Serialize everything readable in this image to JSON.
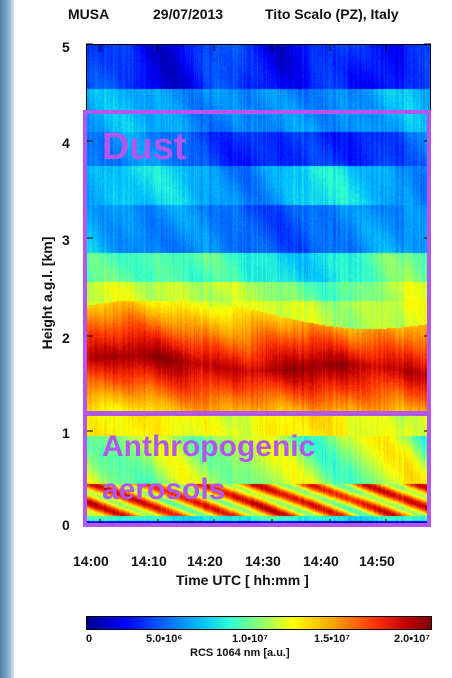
{
  "title": {
    "instrument": "MUSA",
    "date": "29/07/2013",
    "site": "Tito Scalo (PZ), Italy"
  },
  "chart_data": {
    "type": "heatmap",
    "title": "MUSA   29/07/2013   Tito Scalo (PZ), Italy",
    "xlabel": "Time UTC [ hh:mm ]",
    "ylabel": "Height a.g.l. [km]",
    "x_ticks": [
      "14:00",
      "14:10",
      "14:20",
      "14:30",
      "14:40",
      "14:50"
    ],
    "y_ticks": [
      "0",
      "1",
      "2",
      "3",
      "4",
      "5"
    ],
    "xlim": [
      "13:57",
      "14:57"
    ],
    "ylim": [
      0,
      5
    ],
    "colorbar": {
      "label": "RCS 1064 nm [a.u.]",
      "ticks": [
        "0",
        "5.0•10⁶",
        "1.0•10⁷",
        "1.5•10⁷",
        "2.0•10⁷"
      ],
      "range": [
        0,
        20000000
      ],
      "colormap": "jet"
    },
    "annotations": [
      {
        "text": "Dust",
        "height_range_km": [
          1.2,
          4.3
        ],
        "color": "#b157ec"
      },
      {
        "text_line1": "Anthropogenic",
        "text_line2": "aerosols",
        "height_range_km": [
          0,
          1.2
        ],
        "color": "#b157ec"
      }
    ]
  }
}
